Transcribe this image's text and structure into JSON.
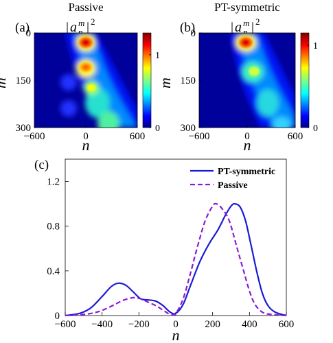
{
  "chart_data": [
    {
      "type": "heatmap",
      "panel_label": "(a)",
      "title": "Passive",
      "quantity_label": "|a_n^m|^2",
      "xlabel": "n",
      "ylabel": "m",
      "xlim": [
        -600,
        600
      ],
      "ylim": [
        0,
        300
      ],
      "xticks": [
        -600,
        0,
        600
      ],
      "yticks": [
        0,
        150,
        300
      ],
      "colorbar": {
        "range": [
          0,
          1.3
        ],
        "ticks": [
          0,
          1
        ],
        "colormap": "jet"
      },
      "features": [
        {
          "n": 0,
          "m": 15,
          "intensity": 1.3
        },
        {
          "n": 0,
          "m": 90,
          "intensity": 1.15
        },
        {
          "n": 40,
          "m": 165,
          "intensity": 0.9
        },
        {
          "n": 120,
          "m": 235,
          "intensity": 0.6
        },
        {
          "n": 180,
          "m": 300,
          "intensity": 0.5
        }
      ]
    },
    {
      "type": "heatmap",
      "panel_label": "(b)",
      "title": "PT-symmetric",
      "quantity_label": "|a_n^m|^2",
      "xlabel": "n",
      "ylabel": "m",
      "xlim": [
        -600,
        600
      ],
      "ylim": [
        0,
        300
      ],
      "xticks": [
        -600,
        0,
        600
      ],
      "yticks": [
        0,
        150,
        300
      ],
      "colorbar": {
        "range": [
          0,
          1.15
        ],
        "ticks": [
          0,
          1
        ],
        "colormap": "jet"
      },
      "features": [
        {
          "n": 0,
          "m": 15,
          "intensity": 1.15
        },
        {
          "n": 30,
          "m": 105,
          "intensity": 0.8
        },
        {
          "n": 120,
          "m": 200,
          "intensity": 0.5
        },
        {
          "n": 240,
          "m": 300,
          "intensity": 0.35
        }
      ]
    },
    {
      "type": "line",
      "panel_label": "(c)",
      "xlabel": "n",
      "ylabel": "",
      "xlim": [
        -600,
        600
      ],
      "ylim": [
        0,
        1.4
      ],
      "xticks": [
        -600,
        -400,
        -200,
        0,
        200,
        400,
        600
      ],
      "yticks": [
        0,
        0.4,
        0.8,
        1.2
      ],
      "legend": "top-right",
      "series": [
        {
          "name": "PT-symmetric",
          "style": "solid",
          "color": "#1a1ad6",
          "points": [
            [
              -600,
              0.0
            ],
            [
              -520,
              0.02
            ],
            [
              -460,
              0.07
            ],
            [
              -400,
              0.17
            ],
            [
              -350,
              0.26
            ],
            [
              -310,
              0.29
            ],
            [
              -270,
              0.27
            ],
            [
              -230,
              0.21
            ],
            [
              -190,
              0.15
            ],
            [
              -150,
              0.14
            ],
            [
              -110,
              0.13
            ],
            [
              -70,
              0.09
            ],
            [
              -30,
              0.03
            ],
            [
              0,
              0.02
            ],
            [
              40,
              0.1
            ],
            [
              80,
              0.27
            ],
            [
              130,
              0.48
            ],
            [
              180,
              0.64
            ],
            [
              230,
              0.77
            ],
            [
              270,
              0.9
            ],
            [
              300,
              0.98
            ],
            [
              320,
              1.0
            ],
            [
              350,
              0.97
            ],
            [
              380,
              0.84
            ],
            [
              410,
              0.62
            ],
            [
              440,
              0.39
            ],
            [
              470,
              0.2
            ],
            [
              500,
              0.09
            ],
            [
              540,
              0.03
            ],
            [
              600,
              0.0
            ]
          ]
        },
        {
          "name": "Passive",
          "style": "dashed",
          "color": "#8a1ad6",
          "points": [
            [
              -600,
              0.0
            ],
            [
              -500,
              0.01
            ],
            [
              -430,
              0.03
            ],
            [
              -380,
              0.06
            ],
            [
              -330,
              0.1
            ],
            [
              -280,
              0.14
            ],
            [
              -230,
              0.16
            ],
            [
              -190,
              0.15
            ],
            [
              -150,
              0.12
            ],
            [
              -110,
              0.09
            ],
            [
              -70,
              0.05
            ],
            [
              -30,
              0.01
            ],
            [
              0,
              0.02
            ],
            [
              40,
              0.15
            ],
            [
              80,
              0.38
            ],
            [
              120,
              0.63
            ],
            [
              160,
              0.85
            ],
            [
              200,
              0.98
            ],
            [
              220,
              1.0
            ],
            [
              250,
              0.96
            ],
            [
              290,
              0.85
            ],
            [
              330,
              0.62
            ],
            [
              370,
              0.39
            ],
            [
              400,
              0.22
            ],
            [
              430,
              0.1
            ],
            [
              470,
              0.03
            ],
            [
              520,
              0.01
            ],
            [
              600,
              0.0
            ]
          ]
        }
      ]
    }
  ]
}
